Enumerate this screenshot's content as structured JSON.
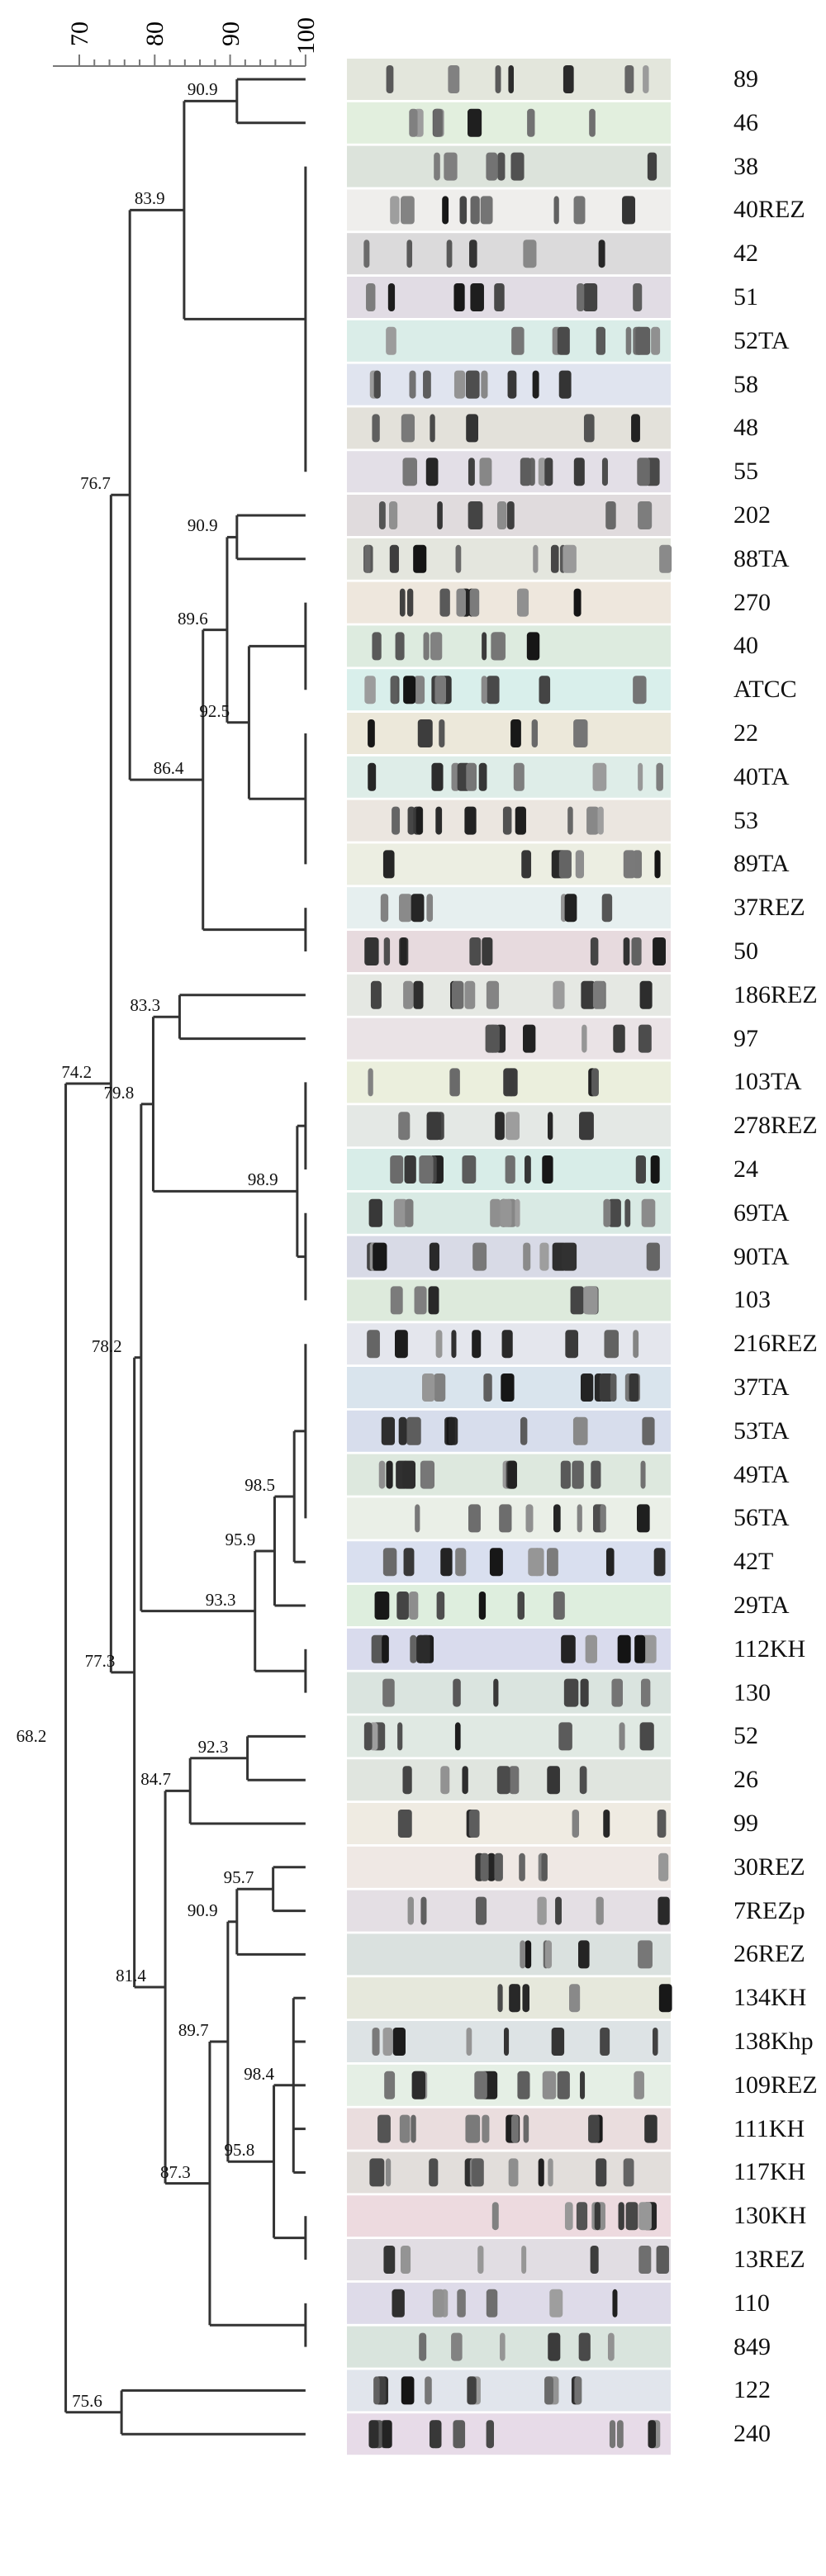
{
  "axis": {
    "min": 70,
    "max": 100,
    "ticks": [
      "70",
      "80",
      "90",
      "100"
    ]
  },
  "leaves": [
    "89",
    "46",
    "38",
    "40REZ",
    "42",
    "51",
    "52TA",
    "58",
    "48",
    "55",
    "202",
    "88TA",
    "270",
    "40",
    "ATCC",
    "22",
    "40TA",
    "53",
    "89TA",
    "37REZ",
    "50",
    "186REZ",
    "97",
    "103TA",
    "278REZ",
    "24",
    "69TA",
    "90TA",
    "103",
    "216REZ",
    "37TA",
    "53TA",
    "49TA",
    "56TA",
    "42T",
    "29TA",
    "112KH",
    "130",
    "52",
    "26",
    "99",
    "30REZ",
    "7REZp",
    "26REZ",
    "134KH",
    "138Khp",
    "109REZ",
    "111KH",
    "117KH",
    "130KH",
    "13REZ",
    "110",
    "849",
    "122",
    "240"
  ],
  "tree": {
    "v": 68.2,
    "l": "68.2",
    "c": [
      {
        "v": 74.2,
        "l": "74.2",
        "c": [
          {
            "v": 76.7,
            "l": "76.7",
            "c": [
              {
                "v": 83.9,
                "l": "83.9",
                "c": [
                  {
                    "v": 90.9,
                    "l": "90.9",
                    "c": [
                      0,
                      1
                    ]
                  },
                  {
                    "v": 100,
                    "c": [
                      2,
                      3,
                      4,
                      5,
                      6,
                      7,
                      8,
                      9
                    ]
                  }
                ]
              },
              {
                "v": 86.4,
                "l": "86.4",
                "c": [
                  {
                    "v": 89.6,
                    "l": "89.6",
                    "c": [
                      {
                        "v": 90.9,
                        "l": "90.9",
                        "c": [
                          10,
                          11
                        ]
                      },
                      {
                        "v": 92.5,
                        "l": "92.5",
                        "c": [
                          {
                            "v": 100,
                            "c": [
                              12,
                              13,
                              14
                            ]
                          },
                          {
                            "v": 100,
                            "c": [
                              15,
                              16,
                              17,
                              18
                            ]
                          }
                        ]
                      }
                    ]
                  },
                  {
                    "v": 100,
                    "c": [
                      19,
                      20
                    ]
                  }
                ]
              }
            ]
          },
          {
            "v": 77.3,
            "l": "77.3",
            "c": [
              {
                "v": 78.2,
                "l": "78.2",
                "c": [
                  {
                    "v": 79.8,
                    "l": "79.8",
                    "c": [
                      {
                        "v": 83.3,
                        "l": "83.3",
                        "c": [
                          21,
                          22
                        ]
                      },
                      {
                        "v": 98.9,
                        "l": "98.9",
                        "c": [
                          {
                            "v": 100,
                            "c": [
                              23,
                              24,
                              25
                            ]
                          },
                          {
                            "v": 100,
                            "c": [
                              26,
                              27,
                              28
                            ]
                          }
                        ]
                      }
                    ]
                  },
                  {
                    "v": 93.3,
                    "l": "93.3",
                    "c": [
                      {
                        "v": 95.9,
                        "l": "95.9",
                        "c": [
                          {
                            "v": 98.5,
                            "l": "98.5",
                            "c": [
                              {
                                "v": 100,
                                "c": [
                                  29,
                                  30,
                                  31,
                                  32,
                                  33
                                ]
                              },
                              34
                            ]
                          },
                          35
                        ]
                      },
                      {
                        "v": 100,
                        "c": [
                          36,
                          37
                        ]
                      }
                    ]
                  }
                ]
              },
              {
                "v": 81.4,
                "l": "81.4",
                "c": [
                  {
                    "v": 84.7,
                    "l": "84.7",
                    "c": [
                      {
                        "v": 92.3,
                        "l": "92.3",
                        "c": [
                          38,
                          39
                        ]
                      },
                      40
                    ]
                  },
                  {
                    "v": 87.3,
                    "l": "87.3",
                    "c": [
                      {
                        "v": 89.7,
                        "l": "89.7",
                        "c": [
                          {
                            "v": 90.9,
                            "l": "90.9",
                            "c": [
                              {
                                "v": 95.7,
                                "l": "95.7",
                                "c": [
                                  41,
                                  42
                                ]
                              },
                              43
                            ]
                          },
                          {
                            "v": 95.8,
                            "l": "95.8",
                            "c": [
                              {
                                "v": 98.4,
                                "l": "98.4",
                                "c": [
                                  44,
                                  45,
                                  46,
                                  47,
                                  48
                                ]
                              },
                              {
                                "v": 100,
                                "c": [
                                  49,
                                  50
                                ]
                              }
                            ]
                          }
                        ]
                      },
                      {
                        "v": 100,
                        "c": [
                          51,
                          52
                        ]
                      }
                    ]
                  }
                ]
              }
            ]
          }
        ]
      },
      {
        "v": 75.6,
        "l": "75.6",
        "c": [
          53,
          54
        ]
      }
    ]
  },
  "colors": {
    "line": "#333333",
    "gray_line": "#888888"
  }
}
